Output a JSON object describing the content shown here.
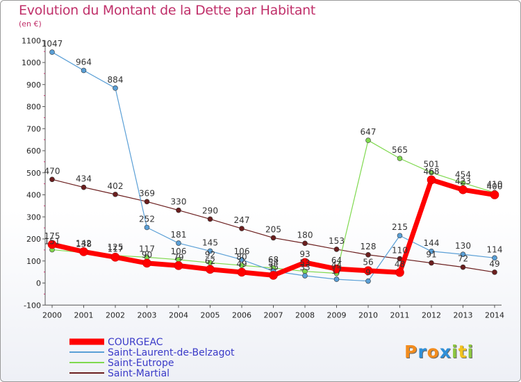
{
  "header": {
    "title": "Evolution du Montant de la Dette par Habitant",
    "subtitle": "(en €)"
  },
  "logo": {
    "letters": [
      "P",
      "r",
      "o",
      "x",
      "i",
      "t",
      "i"
    ],
    "colors": [
      "#f28c1e",
      "#2f8fd8",
      "#f28c1e",
      "#2f8fd8",
      "#8cc63f",
      "#f2c21e",
      "#8cc63f"
    ]
  },
  "chart_data": {
    "type": "line",
    "title": "Evolution du Montant de la Dette par Habitant",
    "subtitle": "(en €)",
    "x": [
      2000,
      2001,
      2002,
      2003,
      2004,
      2005,
      2006,
      2007,
      2008,
      2009,
      2010,
      2011,
      2012,
      2013,
      2014
    ],
    "x_tick_labels": [
      "2000",
      "2001",
      "2002",
      "2003",
      "2004",
      "2005",
      "2006",
      "2007",
      "2008",
      "2009",
      "2010",
      "2011",
      "2012",
      "2013",
      "2014"
    ],
    "ylim": [
      -100,
      1100
    ],
    "y_ticks": [
      -100,
      0,
      100,
      200,
      300,
      400,
      500,
      600,
      700,
      800,
      900,
      1000,
      1100
    ],
    "y_tick_labels": [
      "-100",
      "0",
      "100",
      "200",
      "300",
      "400",
      "500",
      "600",
      "700",
      "800",
      "900",
      "1000",
      "1100"
    ],
    "grid": false,
    "legend_position": "bottom-left",
    "series": [
      {
        "name": "Saint-Martial",
        "color": "#6b1e1e",
        "line_width": 1.2,
        "marker_radius": 3.5,
        "values": [
          470,
          434,
          402,
          369,
          330,
          290,
          247,
          205,
          180,
          153,
          128,
          110,
          91,
          72,
          49
        ],
        "labels": [
          "470",
          "434",
          "402",
          "369",
          "330",
          "290",
          "247",
          "205",
          "180",
          "153",
          "128",
          "110",
          "91",
          "72",
          "49"
        ]
      },
      {
        "name": "Saint-Eutrope",
        "color": "#7fd94e",
        "line_width": 1.2,
        "marker_radius": 3.5,
        "values": [
          151,
          138,
          125,
          117,
          106,
          92,
          80,
          68,
          53,
          44,
          647,
          565,
          501,
          454,
          410
        ],
        "labels": [
          "151",
          "138",
          "125",
          "117",
          "106",
          "92",
          "80",
          "68",
          "53",
          "44",
          "647",
          "565",
          "501",
          "454",
          "410"
        ]
      },
      {
        "name": "Saint-Laurent-de-Belzagot",
        "color": "#5a9fd6",
        "line_width": 1.2,
        "marker_radius": 3.5,
        "values": [
          1047,
          964,
          884,
          252,
          181,
          145,
          106,
          54,
          33,
          17,
          9,
          215,
          144,
          130,
          114
        ],
        "labels": [
          "1047",
          "964",
          "884",
          "252",
          "181",
          "145",
          "106",
          "54",
          "33",
          "17",
          "9",
          "215",
          "144",
          "130",
          "114"
        ]
      },
      {
        "name": "COURGEAC",
        "color": "#ff0000",
        "line_width": 7,
        "marker_radius": 6,
        "values": [
          175,
          142,
          117,
          90,
          79,
          62,
          49,
          35,
          93,
          64,
          56,
          48,
          468,
          423,
          400
        ],
        "labels": [
          "175",
          "142",
          "117",
          "90",
          "79",
          "62",
          "49",
          "35",
          "93",
          "64",
          "56",
          "48",
          "468",
          "423",
          "400"
        ]
      }
    ],
    "legend": [
      "COURGEAC",
      "Saint-Laurent-de-Belzagot",
      "Saint-Eutrope",
      "Saint-Martial"
    ]
  }
}
